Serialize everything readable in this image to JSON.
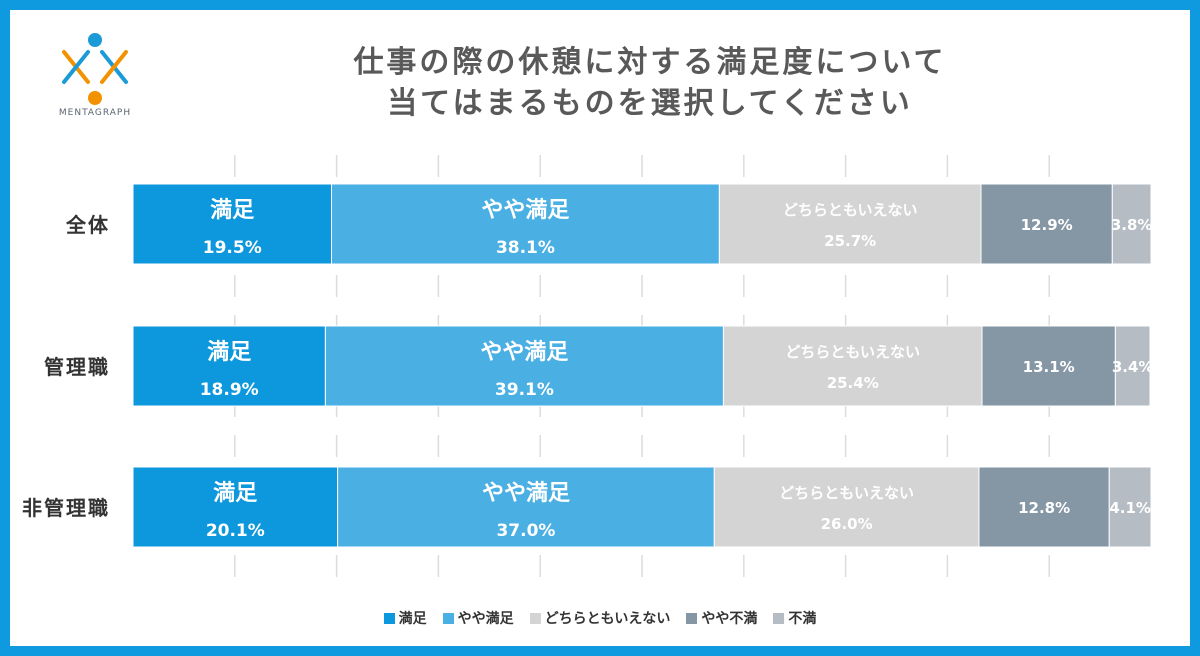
{
  "logo": {
    "text": "MENTAGRAPH",
    "colors": {
      "blue": "#1a9ad7",
      "orange": "#f39200"
    }
  },
  "chart_data": {
    "type": "bar",
    "orientation": "horizontal",
    "stacked": true,
    "title_lines": [
      "仕事の際の休憩に対する満足度について",
      "当てはまるものを選択してください"
    ],
    "categories": [
      "全体",
      "管理職",
      "非管理職"
    ],
    "series": [
      {
        "name": "満足",
        "color": "#0d97dc",
        "values": [
          19.5,
          18.9,
          20.1
        ],
        "labels": [
          "19.5%",
          "18.9%",
          "20.1%"
        ]
      },
      {
        "name": "やや満足",
        "color": "#4aafe3",
        "values": [
          38.1,
          39.1,
          37.0
        ],
        "labels": [
          "38.1%",
          "39.1%",
          "37.0%"
        ]
      },
      {
        "name": "どちらともいえない",
        "color": "#d4d4d4",
        "values": [
          25.7,
          25.4,
          26.0
        ],
        "labels": [
          "25.7%",
          "25.4%",
          "26.0%"
        ]
      },
      {
        "name": "やや不満",
        "color": "#8596a5",
        "values": [
          12.9,
          13.1,
          12.8
        ],
        "labels": [
          "12.9%",
          "13.1%",
          "12.8%"
        ]
      },
      {
        "name": "不満",
        "color": "#b5bcc4",
        "values": [
          3.8,
          3.4,
          4.1
        ],
        "labels": [
          "3.8%",
          "3.4%",
          "4.1%"
        ]
      }
    ],
    "xlim": [
      0,
      100
    ],
    "grid": true,
    "legend_position": "bottom"
  }
}
